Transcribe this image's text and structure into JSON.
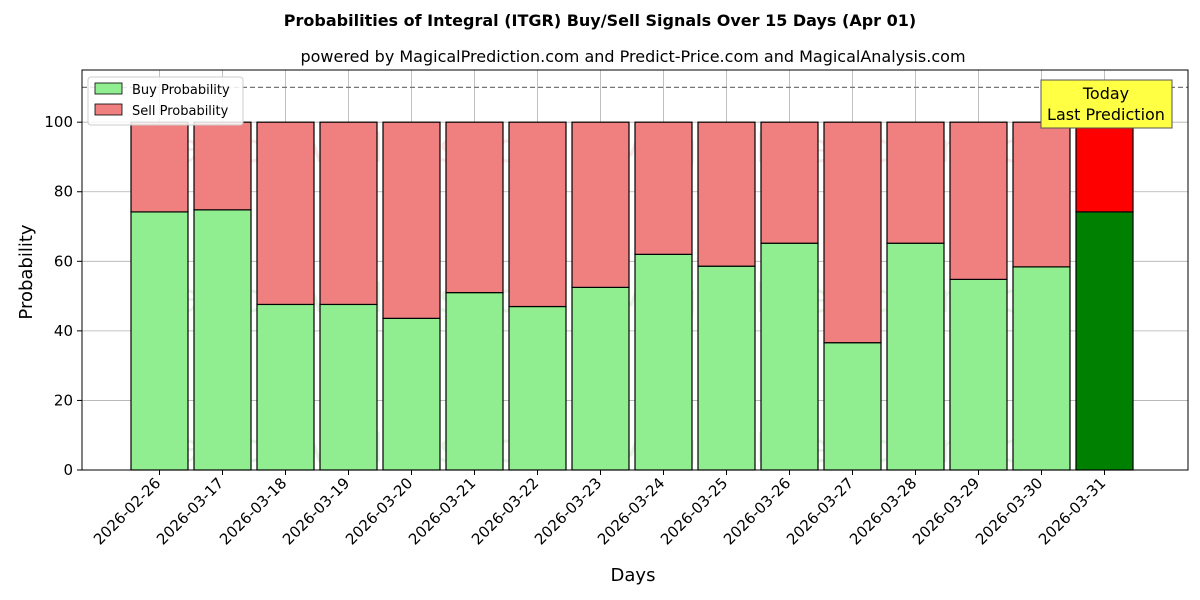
{
  "chart_data": {
    "type": "bar",
    "stacked": true,
    "title": "Probabilities of Integral (ITGR) Buy/Sell Signals Over 15 Days (Apr 01)",
    "subtitle": "powered by MagicalPrediction.com and Predict-Price.com and MagicalAnalysis.com",
    "xlabel": "Days",
    "ylabel": "Probability",
    "ylim": [
      0,
      115
    ],
    "yticks": [
      0,
      20,
      40,
      60,
      80,
      100
    ],
    "grid": true,
    "legend_position": "top-left",
    "reference_line": 110,
    "categories": [
      "2026-02-26",
      "2026-03-17",
      "2026-03-18",
      "2026-03-19",
      "2026-03-20",
      "2026-03-21",
      "2026-03-22",
      "2026-03-23",
      "2026-03-24",
      "2026-03-25",
      "2026-03-26",
      "2026-03-27",
      "2026-03-28",
      "2026-03-29",
      "2026-03-30",
      "2026-03-31"
    ],
    "series": [
      {
        "name": "Buy Probability",
        "color": "#90ee90",
        "highlight_color": "#008000",
        "values": [
          74.2,
          74.8,
          47.6,
          47.6,
          43.6,
          51.0,
          47.0,
          52.5,
          62.0,
          58.6,
          65.2,
          36.6,
          65.2,
          54.8,
          58.4,
          74.2
        ]
      },
      {
        "name": "Sell Probability",
        "color": "#f08080",
        "highlight_color": "#ff0000",
        "values": [
          25.8,
          25.2,
          52.4,
          52.4,
          56.4,
          49.0,
          53.0,
          47.5,
          38.0,
          41.4,
          34.8,
          63.4,
          34.8,
          45.2,
          41.6,
          25.8
        ]
      }
    ],
    "annotation": {
      "line1": "Today",
      "line2": "Last Prediction",
      "bg_color": "#ffff44"
    },
    "watermarks": [
      "MagicalAnalysis.com",
      "MagicalPrediction.com"
    ]
  }
}
